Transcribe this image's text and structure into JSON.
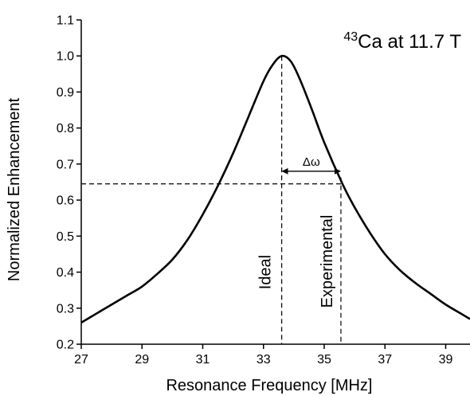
{
  "chart_data": {
    "type": "line",
    "title": "",
    "xlabel": "Resonance Frequency [MHz]",
    "ylabel": "Normalized Enhancement",
    "xlim": [
      27,
      39.8
    ],
    "ylim": [
      0.2,
      1.1
    ],
    "x_ticks": [
      "27",
      "29",
      "31",
      "33",
      "35",
      "37",
      "39"
    ],
    "y_ticks": [
      "0.2",
      "0.3",
      "0.4",
      "0.5",
      "0.6",
      "0.7",
      "0.8",
      "0.9",
      "1.0",
      "1.1"
    ],
    "grid": false,
    "series": [
      {
        "x": [
          27.0,
          27.5,
          28.0,
          28.5,
          29.0,
          29.5,
          30.0,
          30.5,
          31.0,
          31.5,
          32.0,
          32.5,
          33.0,
          33.3,
          33.6,
          33.9,
          34.2,
          34.6,
          35.0,
          35.6,
          36.0,
          36.5,
          37.0,
          37.5,
          38.0,
          38.5,
          39.0,
          39.5,
          39.8
        ],
        "y": [
          0.26,
          0.285,
          0.31,
          0.335,
          0.36,
          0.395,
          0.435,
          0.49,
          0.56,
          0.64,
          0.73,
          0.83,
          0.93,
          0.975,
          1.0,
          0.985,
          0.935,
          0.85,
          0.76,
          0.645,
          0.58,
          0.51,
          0.45,
          0.405,
          0.37,
          0.34,
          0.31,
          0.285,
          0.27
        ]
      }
    ],
    "annotations": {
      "nucleus_mass": "43",
      "field_label": "Ca at 11.7 T",
      "ideal_label": "Ideal",
      "experimental_label": "Experimental",
      "delta_label": "Δω",
      "ideal_x": 33.6,
      "experimental_x": 35.55,
      "enhancement_level": 0.645
    }
  }
}
